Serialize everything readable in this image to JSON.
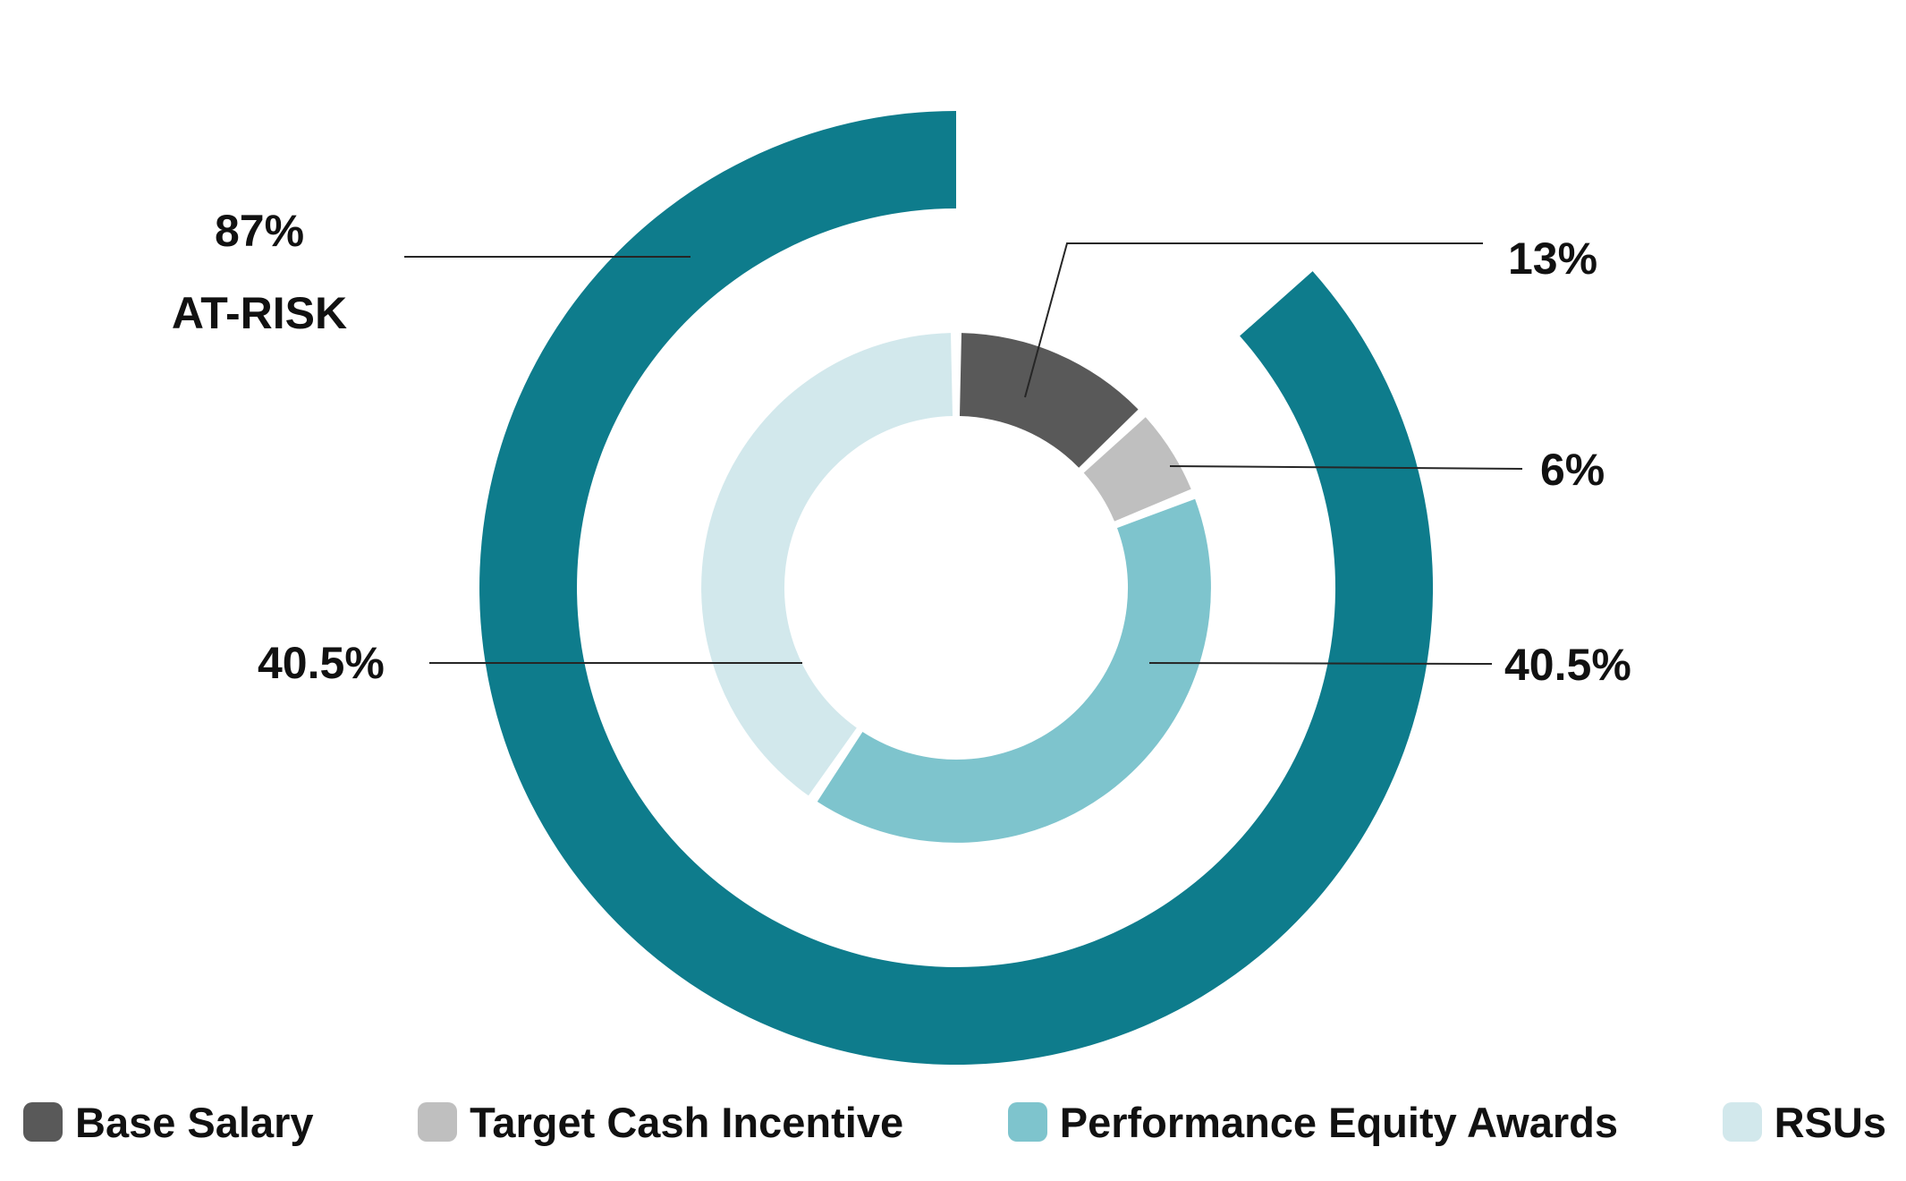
{
  "chart_data": {
    "type": "pie",
    "subtype": "nested-donut",
    "direction": "clockwise",
    "start_angle_deg": 0,
    "legend_position": "bottom",
    "outer_ring": {
      "label": "AT-RISK",
      "value": 87,
      "display_lines": [
        "87%",
        "AT-RISK"
      ],
      "gap_value": 13,
      "color": "#0E7C8C"
    },
    "inner_segments": [
      {
        "label": "Base Salary",
        "value": 13,
        "display": "13%",
        "color": "#595959"
      },
      {
        "label": "Target Cash Incentive",
        "value": 6,
        "display": "6%",
        "color": "#BFBFBF"
      },
      {
        "label": "Performance Equity Awards",
        "value": 40.5,
        "display": "40.5%",
        "color": "#7EC4CD"
      },
      {
        "label": "RSUs",
        "value": 40.5,
        "display": "40.5%",
        "color": "#D2E8EC"
      }
    ],
    "legend": [
      "Base Salary",
      "Target Cash Incentive",
      "Performance Equity Awards",
      "RSUs"
    ]
  }
}
